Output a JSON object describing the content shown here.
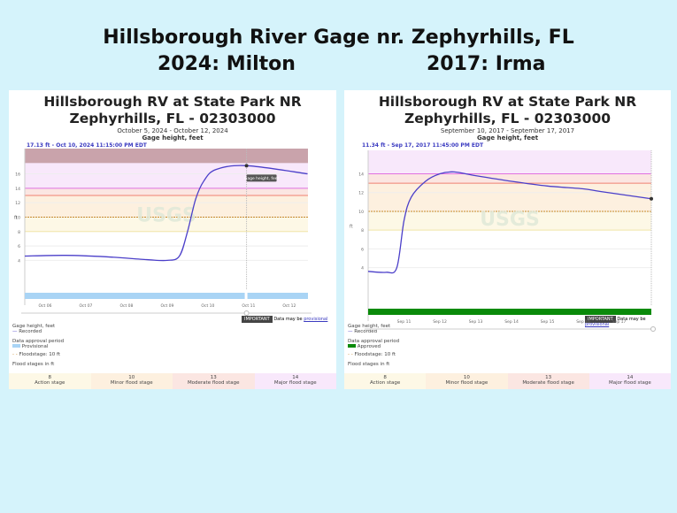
{
  "header": {
    "title": "Hillsborough River Gage nr. Zephyrhills, FL",
    "left_label": "2024: Milton",
    "right_label": "2017: Irma"
  },
  "panels": [
    {
      "title": "Hillsborough RV at State Park NR Zephyrhills, FL - 02303000",
      "date_range": "October 5, 2024 - October 12, 2024",
      "subtitle": "Gage height, feet",
      "current": "17.13 ft - Oct 10, 2024 11:15:00 PM EDT",
      "tooltip": "Gage height, feet",
      "approval_label": "Provisional",
      "approval_color": "#a9d4f5"
    },
    {
      "title": "Hillsborough RV at State Park NR Zephyrhills, FL - 02303000",
      "date_range": "September 10, 2017 - September 17, 2017",
      "subtitle": "Gage height, feet",
      "current": "11.34 ft - Sep 17, 2017 11:45:00 PM EDT",
      "tooltip": "",
      "approval_label": "Approved",
      "approval_color": "#0a8a0a"
    }
  ],
  "common": {
    "ylabel": "ft",
    "legend_title": "Gage height, feet",
    "legend_recorded": "Recorded",
    "approval_title": "Data approval period",
    "floodstage": "Floodstage: 10 ft",
    "important": "IMPORTANT",
    "data_may_be": "Data may be",
    "provisional_link": "provisional",
    "flood_stages_title": "Flood stages in ft",
    "stages": [
      {
        "value": "8",
        "label": "Action stage",
        "color": "#fdf8e6"
      },
      {
        "value": "10",
        "label": "Minor flood stage",
        "color": "#fdf0df"
      },
      {
        "value": "13",
        "label": "Moderate flood stage",
        "color": "#fbe6e2"
      },
      {
        "value": "14",
        "label": "Major flood stage",
        "color": "#f8e8fb"
      }
    ]
  },
  "chart_data": [
    {
      "type": "line",
      "title": "Hillsborough RV at State Park NR Zephyrhills, FL - 02303000",
      "ylabel": "ft",
      "ylim": [
        0,
        19.5
      ],
      "yticks": [
        4,
        6,
        8,
        10,
        12,
        14,
        16
      ],
      "xlim": [
        0.5,
        7.46
      ],
      "x_unit": "days since Oct 5, 2024",
      "xticks": [
        {
          "x": 1,
          "label": "Oct 06"
        },
        {
          "x": 2,
          "label": "Oct 07"
        },
        {
          "x": 3,
          "label": "Oct 08"
        },
        {
          "x": 4,
          "label": "Oct 09"
        },
        {
          "x": 5,
          "label": "Oct 10"
        },
        {
          "x": 6,
          "label": "Oct 11"
        },
        {
          "x": 7,
          "label": "Oct 12"
        }
      ],
      "series": [
        {
          "name": "Recorded",
          "color": "#4b3fc9",
          "points": [
            [
              0.5,
              4.6
            ],
            [
              1.5,
              4.7
            ],
            [
              2.5,
              4.5
            ],
            [
              3.5,
              4.1
            ],
            [
              4.0,
              4.0
            ],
            [
              4.3,
              4.6
            ],
            [
              4.5,
              8
            ],
            [
              4.7,
              12.5
            ],
            [
              4.9,
              15
            ],
            [
              5.2,
              16.6
            ],
            [
              5.95,
              17.13
            ],
            [
              7.45,
              16.0
            ]
          ]
        }
      ]
    },
    {
      "type": "line",
      "title": "Hillsborough RV at State Park NR Zephyrhills, FL - 02303000",
      "ylabel": "ft",
      "ylim": [
        0,
        16.5
      ],
      "yticks": [
        4,
        6,
        8,
        10,
        12,
        14
      ],
      "xlim": [
        0,
        7.9
      ],
      "x_unit": "days since Sep 10, 2017",
      "xticks": [
        {
          "x": 1,
          "label": "Sep 11"
        },
        {
          "x": 2,
          "label": "Sep 12"
        },
        {
          "x": 3,
          "label": "Sep 13"
        },
        {
          "x": 4,
          "label": "Sep 14"
        },
        {
          "x": 5,
          "label": "Sep 15"
        },
        {
          "x": 6,
          "label": "Sep 16"
        },
        {
          "x": 7,
          "label": "Sep 17"
        }
      ],
      "series": [
        {
          "name": "Recorded",
          "color": "#4b3fc9",
          "points": [
            [
              0,
              3.6
            ],
            [
              0.5,
              3.5
            ],
            [
              0.8,
              4
            ],
            [
              1.0,
              9
            ],
            [
              1.2,
              11.5
            ],
            [
              1.6,
              13.2
            ],
            [
              2.0,
              14.0
            ],
            [
              2.4,
              14.2
            ],
            [
              3,
              13.8
            ],
            [
              4,
              13.2
            ],
            [
              5,
              12.7
            ],
            [
              6,
              12.4
            ],
            [
              6.5,
              12.1
            ],
            [
              7.9,
              11.34
            ]
          ]
        }
      ]
    }
  ]
}
